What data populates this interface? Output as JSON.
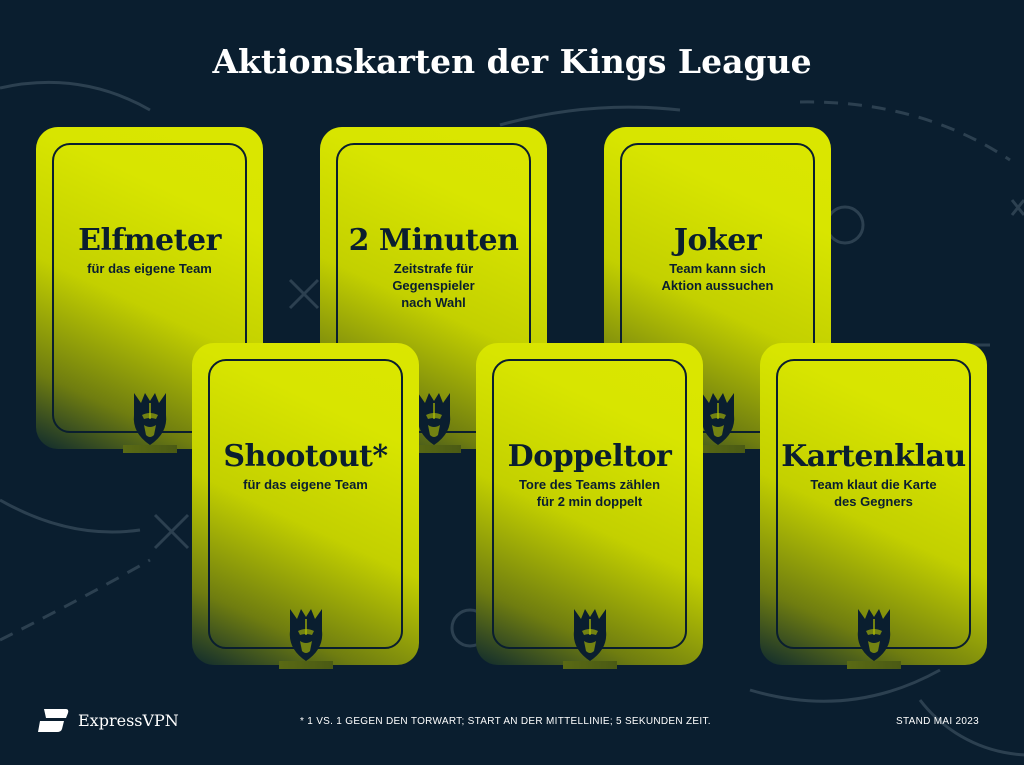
{
  "title": "Aktionskarten der Kings League",
  "colors": {
    "background": "#0a1e2f",
    "card": "#d8e500",
    "text": "#0a1e2f"
  },
  "cards": [
    {
      "name": "Elfmeter",
      "description": "für das eigene Team",
      "icon": "kings-league-crown-icon"
    },
    {
      "name": "2 Minuten",
      "description": "Zeitstrafe für\nGegenspieler\nnach Wahl",
      "icon": "kings-league-crown-icon"
    },
    {
      "name": "Joker",
      "description": "Team kann sich\nAktion aussuchen",
      "icon": "kings-league-crown-icon"
    },
    {
      "name": "Shootout*",
      "description": "für das eigene Team",
      "icon": "kings-league-crown-icon"
    },
    {
      "name": "Doppeltor",
      "description": "Tore des Teams zählen\nfür 2 min doppelt",
      "icon": "kings-league-crown-icon"
    },
    {
      "name": "Kartenklau",
      "description": "Team klaut die Karte\ndes Gegners",
      "icon": "kings-league-crown-icon"
    }
  ],
  "footer": {
    "brand": "ExpressVPN",
    "footnote": "* 1 VS. 1 GEGEN DEN TORWART; START AN DER MITTELLINIE; 5 SEKUNDEN ZEIT.",
    "date": "STAND MAI 2023"
  }
}
